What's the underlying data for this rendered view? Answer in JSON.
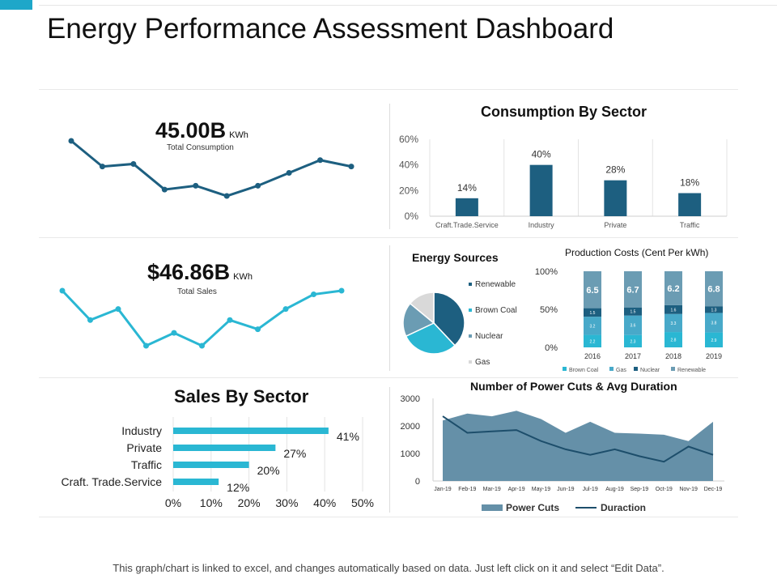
{
  "page": {
    "title": "Energy Performance Assessment Dashboard",
    "footer": "This graph/chart is linked to excel, and changes automatically based on data.  Just left click on it and select “Edit Data”."
  },
  "colors": {
    "dark": "#1d5f80",
    "teal": "#2ab7d3",
    "steel": "#6b9cb3",
    "light": "#d9d9d9",
    "accent": "#1ea7c9"
  },
  "kpis": {
    "consumption": {
      "value": "45.00B",
      "unit": "KWh",
      "label": "Total Consumption"
    },
    "sales": {
      "value": "$46.86B",
      "unit": "KWh",
      "label": "Total Sales"
    }
  },
  "chart_data": [
    {
      "id": "consumption-sparkline",
      "type": "line",
      "title": "Total Consumption trend",
      "values": [
        60,
        40,
        42,
        22,
        25,
        17,
        25,
        35,
        45,
        40
      ],
      "color": "#1d5f80"
    },
    {
      "id": "sales-sparkline",
      "type": "line",
      "title": "Total Sales trend",
      "values": [
        58,
        42,
        48,
        28,
        35,
        28,
        42,
        37,
        48,
        56,
        58
      ],
      "color": "#2ab7d3"
    },
    {
      "id": "consumption-by-sector",
      "type": "bar",
      "title": "Consumption By Sector",
      "categories": [
        "Craft.Trade.Service",
        "Industry",
        "Private",
        "Traffic"
      ],
      "values": [
        14,
        40,
        28,
        18
      ],
      "value_labels": [
        "14%",
        "40%",
        "28%",
        "18%"
      ],
      "yticks": [
        "0%",
        "20%",
        "40%",
        "60%"
      ],
      "ylim": [
        0,
        60
      ]
    },
    {
      "id": "energy-sources",
      "type": "pie",
      "title": "Energy Sources",
      "labels": [
        "Renewable",
        "Brown Coal",
        "Nuclear",
        "Gas"
      ],
      "values": [
        38,
        30,
        18,
        14
      ],
      "colors": [
        "#1d5f80",
        "#2ab7d3",
        "#6b9cb3",
        "#d9d9d9"
      ]
    },
    {
      "id": "production-costs",
      "type": "bar",
      "stacked": true,
      "title": "Production Costs (Cent Per kWh)",
      "categories": [
        "2016",
        "2017",
        "2018",
        "2019"
      ],
      "series": [
        {
          "name": "Brown Coal",
          "values": [
            2.2,
            2.3,
            2.8,
            2.9
          ],
          "labels": [
            "2.2",
            "2.3",
            "2.8",
            "2.9"
          ],
          "color": "#2ab7d3"
        },
        {
          "name": "Gas",
          "values": [
            3.2,
            3.6,
            3.3,
            3.8
          ],
          "labels": [
            "3.2",
            "3.6",
            "3.3",
            "3.8"
          ],
          "color": "#48a9c9"
        },
        {
          "name": "Nuclear",
          "values": [
            1.5,
            1.5,
            1.6,
            1.3
          ],
          "labels": [
            "1.5",
            "1.5",
            "1.6",
            "1.3"
          ],
          "color": "#1d5f80"
        },
        {
          "name": "Renewable",
          "values": [
            6.5,
            6.7,
            6.2,
            6.8
          ],
          "labels": [
            "6.5",
            "6.7",
            "6.2",
            "6.8"
          ],
          "color": "#6b9cb3"
        }
      ],
      "yticks": [
        "0%",
        "50%",
        "100%"
      ],
      "ylim": [
        0,
        100
      ]
    },
    {
      "id": "sales-by-sector",
      "type": "bar",
      "orientation": "horizontal",
      "title": "Sales By Sector",
      "categories": [
        "Industry",
        "Private",
        "Traffic",
        "Craft. Trade.Service"
      ],
      "values": [
        41,
        27,
        20,
        12
      ],
      "value_labels": [
        "41%",
        "27%",
        "20%",
        "12%"
      ],
      "xticks": [
        "0%",
        "10%",
        "20%",
        "30%",
        "40%",
        "50%"
      ],
      "xlim": [
        0,
        50
      ]
    },
    {
      "id": "power-cuts",
      "type": "area",
      "title": "Number of Power Cuts & Avg Duration",
      "categories": [
        "Jan-19",
        "Feb-19",
        "Mar-19",
        "Apr-19",
        "May-19",
        "Jun-19",
        "Jul-19",
        "Aug-19",
        "Sep-19",
        "Oct-19",
        "Nov-19",
        "Dec-19"
      ],
      "series": [
        {
          "name": "Power Cuts",
          "type": "area",
          "values": [
            2200,
            2450,
            2350,
            2550,
            2250,
            1750,
            2150,
            1750,
            1720,
            1680,
            1450,
            2150
          ],
          "color": "#6590a8"
        },
        {
          "name": "Duraction",
          "type": "line",
          "values": [
            2350,
            1750,
            1800,
            1850,
            1450,
            1150,
            950,
            1150,
            900,
            700,
            1250,
            950
          ],
          "color": "#1d4e6b"
        }
      ],
      "yticks": [
        "0",
        "1000",
        "2000",
        "3000"
      ],
      "ylim": [
        0,
        3000
      ]
    }
  ]
}
